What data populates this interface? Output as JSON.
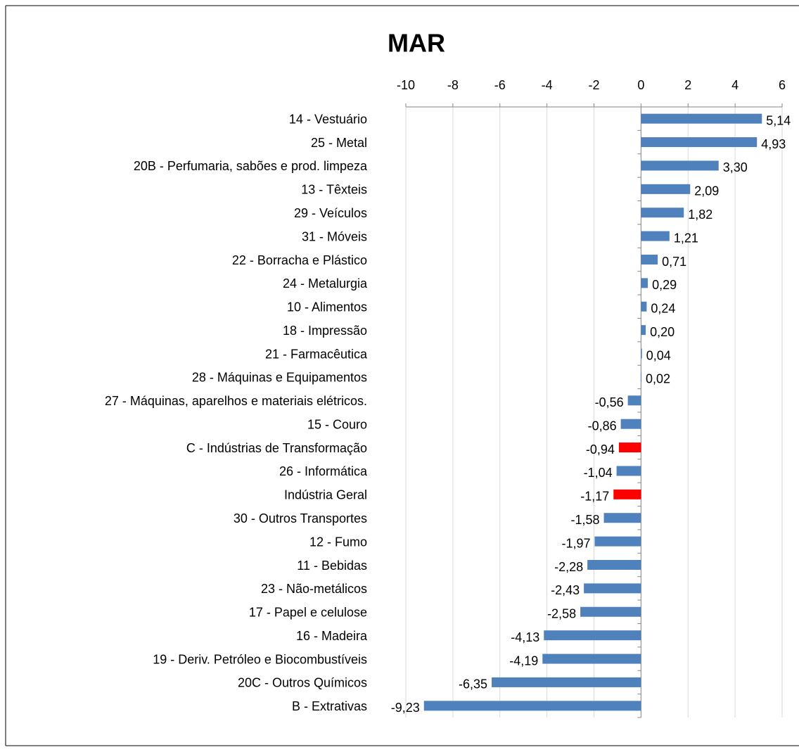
{
  "chart_data": {
    "type": "barh",
    "title": "MAR",
    "categories": [
      "14 - Vestuário",
      "25 - Metal",
      "20B - Perfumaria, sabões e prod. limpeza",
      "13 - Têxteis",
      "29 - Veículos",
      "31 - Móveis",
      "22 - Borracha e Plástico",
      "24 - Metalurgia",
      "10 - Alimentos",
      "18 - Impressão",
      "21 - Farmacêutica",
      "28 - Máquinas e Equipamentos",
      "27 - Máquinas, aparelhos e materiais elétricos.",
      "15 - Couro",
      "C - Indústrias de Transformação",
      "26 - Informática",
      "Indústria Geral",
      "30 - Outros Transportes",
      "12 - Fumo",
      "11 - Bebidas",
      "23 - Não-metálicos",
      "17 - Papel e celulose",
      "16 - Madeira",
      "19 - Deriv. Petróleo e Biocombustíveis",
      "20C - Outros Químicos",
      "B - Extrativas"
    ],
    "values": [
      5.14,
      4.93,
      3.3,
      2.09,
      1.82,
      1.21,
      0.71,
      0.29,
      0.24,
      0.2,
      0.04,
      0.02,
      -0.56,
      -0.86,
      -0.94,
      -1.04,
      -1.17,
      -1.58,
      -1.97,
      -2.28,
      -2.43,
      -2.58,
      -4.13,
      -4.19,
      -6.35,
      -9.23
    ],
    "value_labels": [
      "5,14",
      "4,93",
      "3,30",
      "2,09",
      "1,82",
      "1,21",
      "0,71",
      "0,29",
      "0,24",
      "0,20",
      "0,04",
      "0,02",
      "-0,56",
      "-0,86",
      "-0,94",
      "-1,04",
      "-1,17",
      "-1,58",
      "-1,97",
      "-2,28",
      "-2,43",
      "-2,58",
      "-4,13",
      "-4,19",
      "-6,35",
      "-9,23"
    ],
    "colors": [
      "#4f81bd",
      "#4f81bd",
      "#4f81bd",
      "#4f81bd",
      "#4f81bd",
      "#4f81bd",
      "#4f81bd",
      "#4f81bd",
      "#4f81bd",
      "#4f81bd",
      "#4f81bd",
      "#4f81bd",
      "#4f81bd",
      "#4f81bd",
      "#ff0000",
      "#4f81bd",
      "#ff0000",
      "#4f81bd",
      "#4f81bd",
      "#4f81bd",
      "#4f81bd",
      "#4f81bd",
      "#4f81bd",
      "#4f81bd",
      "#4f81bd",
      "#4f81bd"
    ],
    "xlim": [
      -10,
      6
    ],
    "xticks": [
      -10,
      -8,
      -6,
      -4,
      -2,
      0,
      2,
      4,
      6
    ],
    "grid": true
  }
}
